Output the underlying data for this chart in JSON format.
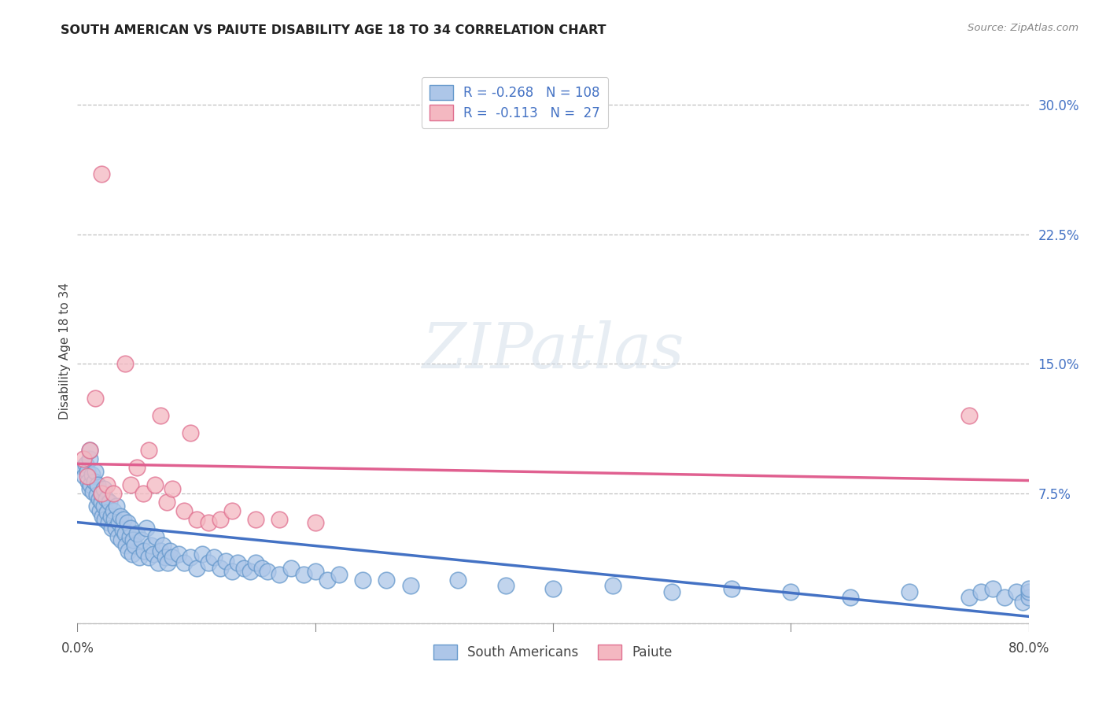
{
  "title": "SOUTH AMERICAN VS PAIUTE DISABILITY AGE 18 TO 34 CORRELATION CHART",
  "source": "Source: ZipAtlas.com",
  "ylabel": "Disability Age 18 to 34",
  "watermark": "ZIPatlas",
  "legend_label1": "South Americans",
  "legend_label2": "Paiute",
  "r1": -0.268,
  "n1": 108,
  "r2": -0.113,
  "n2": 27,
  "color_blue_face": "#adc6e8",
  "color_blue_edge": "#6699cc",
  "color_pink_face": "#f4b8c1",
  "color_pink_edge": "#e07090",
  "color_blue_line": "#4472c4",
  "color_pink_line": "#e06090",
  "color_r_value": "#4472c4",
  "ytick_values": [
    0.075,
    0.15,
    0.225,
    0.3
  ],
  "ytick_labels": [
    "7.5%",
    "15.0%",
    "22.5%",
    "30.0%"
  ],
  "grid_values": [
    0.0,
    0.075,
    0.15,
    0.225,
    0.3
  ],
  "xlim": [
    0.0,
    0.8
  ],
  "ylim": [
    -0.005,
    0.32
  ],
  "blue_scatter_x": [
    0.005,
    0.006,
    0.007,
    0.008,
    0.009,
    0.01,
    0.01,
    0.01,
    0.011,
    0.012,
    0.013,
    0.014,
    0.015,
    0.016,
    0.016,
    0.017,
    0.018,
    0.019,
    0.02,
    0.02,
    0.021,
    0.022,
    0.022,
    0.023,
    0.024,
    0.025,
    0.026,
    0.027,
    0.028,
    0.029,
    0.03,
    0.031,
    0.032,
    0.033,
    0.034,
    0.035,
    0.036,
    0.037,
    0.038,
    0.039,
    0.04,
    0.041,
    0.042,
    0.043,
    0.044,
    0.045,
    0.046,
    0.047,
    0.048,
    0.05,
    0.052,
    0.054,
    0.056,
    0.058,
    0.06,
    0.062,
    0.064,
    0.066,
    0.068,
    0.07,
    0.072,
    0.074,
    0.076,
    0.078,
    0.08,
    0.085,
    0.09,
    0.095,
    0.1,
    0.105,
    0.11,
    0.115,
    0.12,
    0.125,
    0.13,
    0.135,
    0.14,
    0.145,
    0.15,
    0.155,
    0.16,
    0.17,
    0.18,
    0.19,
    0.2,
    0.21,
    0.22,
    0.24,
    0.26,
    0.28,
    0.32,
    0.36,
    0.4,
    0.45,
    0.5,
    0.55,
    0.6,
    0.65,
    0.7,
    0.75,
    0.76,
    0.77,
    0.78,
    0.79,
    0.795,
    0.8,
    0.8,
    0.8
  ],
  "blue_scatter_y": [
    0.09,
    0.085,
    0.092,
    0.088,
    0.082,
    0.095,
    0.078,
    0.1,
    0.08,
    0.086,
    0.076,
    0.082,
    0.088,
    0.074,
    0.068,
    0.08,
    0.072,
    0.065,
    0.07,
    0.075,
    0.062,
    0.078,
    0.068,
    0.06,
    0.072,
    0.064,
    0.058,
    0.07,
    0.062,
    0.055,
    0.065,
    0.06,
    0.055,
    0.068,
    0.05,
    0.058,
    0.062,
    0.048,
    0.054,
    0.06,
    0.052,
    0.045,
    0.058,
    0.042,
    0.05,
    0.055,
    0.04,
    0.048,
    0.045,
    0.052,
    0.038,
    0.048,
    0.042,
    0.055,
    0.038,
    0.045,
    0.04,
    0.05,
    0.035,
    0.042,
    0.045,
    0.038,
    0.035,
    0.042,
    0.038,
    0.04,
    0.035,
    0.038,
    0.032,
    0.04,
    0.035,
    0.038,
    0.032,
    0.036,
    0.03,
    0.035,
    0.032,
    0.03,
    0.035,
    0.032,
    0.03,
    0.028,
    0.032,
    0.028,
    0.03,
    0.025,
    0.028,
    0.025,
    0.025,
    0.022,
    0.025,
    0.022,
    0.02,
    0.022,
    0.018,
    0.02,
    0.018,
    0.015,
    0.018,
    0.015,
    0.018,
    0.02,
    0.015,
    0.018,
    0.012,
    0.015,
    0.018,
    0.02
  ],
  "pink_scatter_x": [
    0.005,
    0.008,
    0.01,
    0.015,
    0.02,
    0.02,
    0.025,
    0.03,
    0.04,
    0.045,
    0.05,
    0.055,
    0.06,
    0.065,
    0.07,
    0.075,
    0.08,
    0.09,
    0.095,
    0.1,
    0.11,
    0.12,
    0.13,
    0.15,
    0.17,
    0.2,
    0.75
  ],
  "pink_scatter_y": [
    0.095,
    0.085,
    0.1,
    0.13,
    0.075,
    0.26,
    0.08,
    0.075,
    0.15,
    0.08,
    0.09,
    0.075,
    0.1,
    0.08,
    0.12,
    0.07,
    0.078,
    0.065,
    0.11,
    0.06,
    0.058,
    0.06,
    0.065,
    0.06,
    0.06,
    0.058,
    0.12
  ]
}
